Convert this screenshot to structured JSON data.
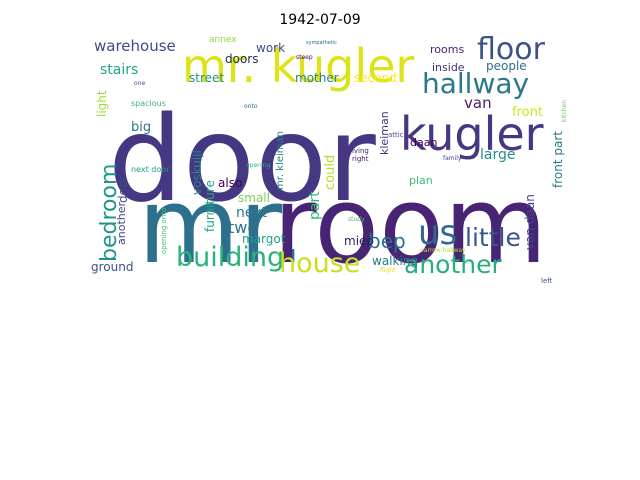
{
  "chart_data": {
    "type": "wordcloud",
    "title": "1942-07-09",
    "words": [
      {
        "text": "door",
        "weight": 100,
        "color": "#453781"
      },
      {
        "text": "mr.",
        "weight": 96,
        "color": "#2d708e"
      },
      {
        "text": "room",
        "weight": 92,
        "color": "#482475"
      },
      {
        "text": "kugler",
        "weight": 46,
        "color": "#453781"
      },
      {
        "text": "mr. kugler",
        "weight": 44,
        "color": "#dde318"
      },
      {
        "text": "hallway",
        "weight": 25,
        "color": "#2a788e"
      },
      {
        "text": "floor",
        "weight": 28,
        "color": "#3b528b"
      },
      {
        "text": "us",
        "weight": 32,
        "color": "#31688e"
      },
      {
        "text": "building",
        "weight": 26,
        "color": "#2db27d"
      },
      {
        "text": "house",
        "weight": 26,
        "color": "#c8e020"
      },
      {
        "text": "another",
        "weight": 24,
        "color": "#29af7f"
      },
      {
        "text": "little",
        "weight": 24,
        "color": "#39568c"
      },
      {
        "text": "bedroom",
        "weight": 22,
        "color": "#1f968b"
      },
      {
        "text": "bep",
        "weight": 20,
        "color": "#2c728e"
      },
      {
        "text": "warehouse",
        "weight": 15,
        "color": "#3e4a89"
      },
      {
        "text": "van daan",
        "weight": 12,
        "color": "#3f4788"
      },
      {
        "text": "stairs",
        "weight": 13,
        "color": "#20a486"
      },
      {
        "text": "rooms",
        "weight": 11,
        "color": "#482878"
      },
      {
        "text": "inside",
        "weight": 11,
        "color": "#472d7b"
      },
      {
        "text": "people",
        "weight": 12,
        "color": "#2e6e8e"
      },
      {
        "text": "front",
        "weight": 13,
        "color": "#d2e21b"
      },
      {
        "text": "front part",
        "weight": 12,
        "color": "#2a788e"
      },
      {
        "text": "large",
        "weight": 13,
        "color": "#238a8d"
      },
      {
        "text": "van",
        "weight": 14,
        "color": "#481b6d"
      },
      {
        "text": "daan",
        "weight": 11,
        "color": "#440154"
      },
      {
        "text": "plan",
        "weight": 11,
        "color": "#3fbc73"
      },
      {
        "text": "kleiman",
        "weight": 11,
        "color": "#46337e"
      },
      {
        "text": "mr. kleiman",
        "weight": 10,
        "color": "#26828e"
      },
      {
        "text": "part",
        "weight": 13,
        "color": "#35b779"
      },
      {
        "text": "could",
        "weight": 12,
        "color": "#b5de2b"
      },
      {
        "text": "miep",
        "weight": 11,
        "color": "#2d1e5e"
      },
      {
        "text": "walking",
        "weight": 11,
        "color": "#2a788e"
      },
      {
        "text": "ground",
        "weight": 11,
        "color": "#3b528b"
      },
      {
        "text": "two",
        "weight": 15,
        "color": "#2d708e"
      },
      {
        "text": "next",
        "weight": 13,
        "color": "#2a788e"
      },
      {
        "text": "also",
        "weight": 11,
        "color": "#440154"
      },
      {
        "text": "small",
        "weight": 11,
        "color": "#7ad151"
      },
      {
        "text": "margot",
        "weight": 11,
        "color": "#1f9e89"
      },
      {
        "text": "furniture",
        "weight": 11,
        "color": "#22a884"
      },
      {
        "text": "voskuijl",
        "weight": 11,
        "color": "#238a8d"
      },
      {
        "text": "big",
        "weight": 12,
        "color": "#2c728e"
      },
      {
        "text": "light",
        "weight": 11,
        "color": "#9fda3a"
      },
      {
        "text": "door",
        "weight": 11,
        "color": "#3e4a89"
      },
      {
        "text": "another",
        "weight": 10,
        "color": "#414487"
      },
      {
        "text": "street",
        "weight": 11,
        "color": "#21918c"
      },
      {
        "text": "mother",
        "weight": 11,
        "color": "#25848e"
      },
      {
        "text": "second",
        "weight": 11,
        "color": "#fde725"
      },
      {
        "text": "work",
        "weight": 11,
        "color": "#3e4a89"
      },
      {
        "text": "doors",
        "weight": 11,
        "color": "#1f2f54"
      },
      {
        "text": "annex",
        "weight": 8,
        "color": "#8fd744"
      },
      {
        "text": "spacious",
        "weight": 7,
        "color": "#35b779"
      },
      {
        "text": "next door",
        "weight": 7,
        "color": "#1f9e89"
      },
      {
        "text": "opening onto",
        "weight": 6,
        "color": "#46c06f"
      },
      {
        "text": "living",
        "weight": 6,
        "color": "#482475"
      },
      {
        "text": "attic",
        "weight": 6,
        "color": "#3b528b"
      },
      {
        "text": "right",
        "weight": 6,
        "color": "#481467"
      },
      {
        "text": "kitchen",
        "weight": 5,
        "color": "#6ece58"
      },
      {
        "text": "family",
        "weight": 5,
        "color": "#404688"
      },
      {
        "text": "narrow hallway",
        "weight": 5,
        "color": "#b5de2b"
      },
      {
        "text": "left",
        "weight": 5,
        "color": "#3b528b"
      },
      {
        "text": "flight",
        "weight": 5,
        "color": "#dde318"
      },
      {
        "text": "study",
        "weight": 5,
        "color": "#4ac16d"
      },
      {
        "text": "sympathetic",
        "weight": 4,
        "color": "#31688e"
      },
      {
        "text": "onto",
        "weight": 5,
        "color": "#2e6e8e"
      },
      {
        "text": "steep",
        "weight": 5,
        "color": "#440154"
      },
      {
        "text": "opening",
        "weight": 5,
        "color": "#2db27d"
      },
      {
        "text": "one",
        "weight": 5,
        "color": "#3b528b"
      }
    ]
  }
}
